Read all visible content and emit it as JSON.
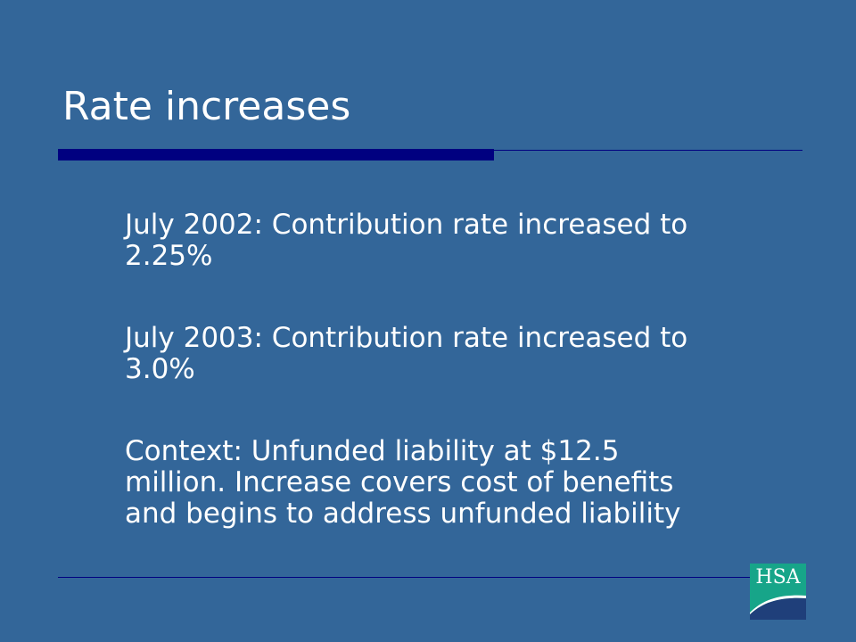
{
  "slide": {
    "title": "Rate increases",
    "bullets": [
      "July 2002: Contribution rate increased to\n2.25%",
      "July 2003: Contribution rate increased to\n3.0%",
      "Context: Unfunded liability at $12.5\nmillion. Increase covers cost of benefits\nand begins to address unfunded liability"
    ]
  },
  "logo": {
    "text": "HSA",
    "icon": "hsa-wave-logo"
  },
  "colors": {
    "background": "#336699",
    "title_text": "#ffffff",
    "accent_bar": "#000080",
    "logo_teal": "#17a589",
    "logo_navy": "#1f3f7a"
  }
}
